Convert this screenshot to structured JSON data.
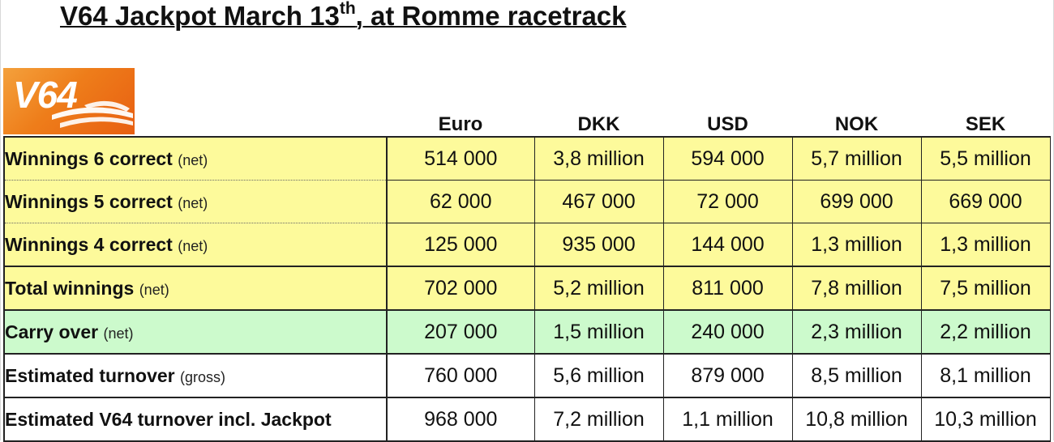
{
  "title": {
    "main": "V64 Jackpot March 13",
    "sup": "th",
    "rest": ", at Romme racetrack"
  },
  "logo": {
    "text": "V64",
    "colors": {
      "start": "#f4a13c",
      "end": "#e85f12"
    }
  },
  "columns": [
    "Euro",
    "DKK",
    "USD",
    "NOK",
    "SEK"
  ],
  "rows": [
    {
      "label": "Winnings 6 correct",
      "note": "(net)",
      "values": [
        "514 000",
        "3,8 million",
        "594 000",
        "5,7 million",
        "5,5 million"
      ],
      "color": "#fdfa9b"
    },
    {
      "label": "Winnings 5 correct",
      "note": "(net)",
      "values": [
        "62 000",
        "467 000",
        "72 000",
        "699 000",
        "669 000"
      ],
      "color": "#fdfa9b"
    },
    {
      "label": "Winnings 4 correct",
      "note": "(net)",
      "values": [
        "125 000",
        "935 000",
        "144 000",
        "1,3 million",
        "1,3 million"
      ],
      "color": "#fdfa9b"
    },
    {
      "label": "Total winnings",
      "note": "(net)",
      "values": [
        "702 000",
        "5,2 million",
        "811 000",
        "7,8 million",
        "7,5 million"
      ],
      "color": "#fdfa9b"
    },
    {
      "label": "Carry over",
      "note": "(net)",
      "values": [
        "207 000",
        "1,5 million",
        "240 000",
        "2,3 million",
        "2,2 million"
      ],
      "color": "#ccfacc"
    },
    {
      "label": "Estimated turnover",
      "note": "(gross)",
      "values": [
        "760 000",
        "5,6 million",
        "879 000",
        "8,5 million",
        "8,1 million"
      ],
      "color": "#ffffff"
    },
    {
      "label": "Estimated V64 turnover incl. Jackpot",
      "note": "",
      "values": [
        "968 000",
        "7,2 million",
        "1,1 million",
        "10,8 million",
        "10,3 million"
      ],
      "color": "#ffffff"
    }
  ]
}
